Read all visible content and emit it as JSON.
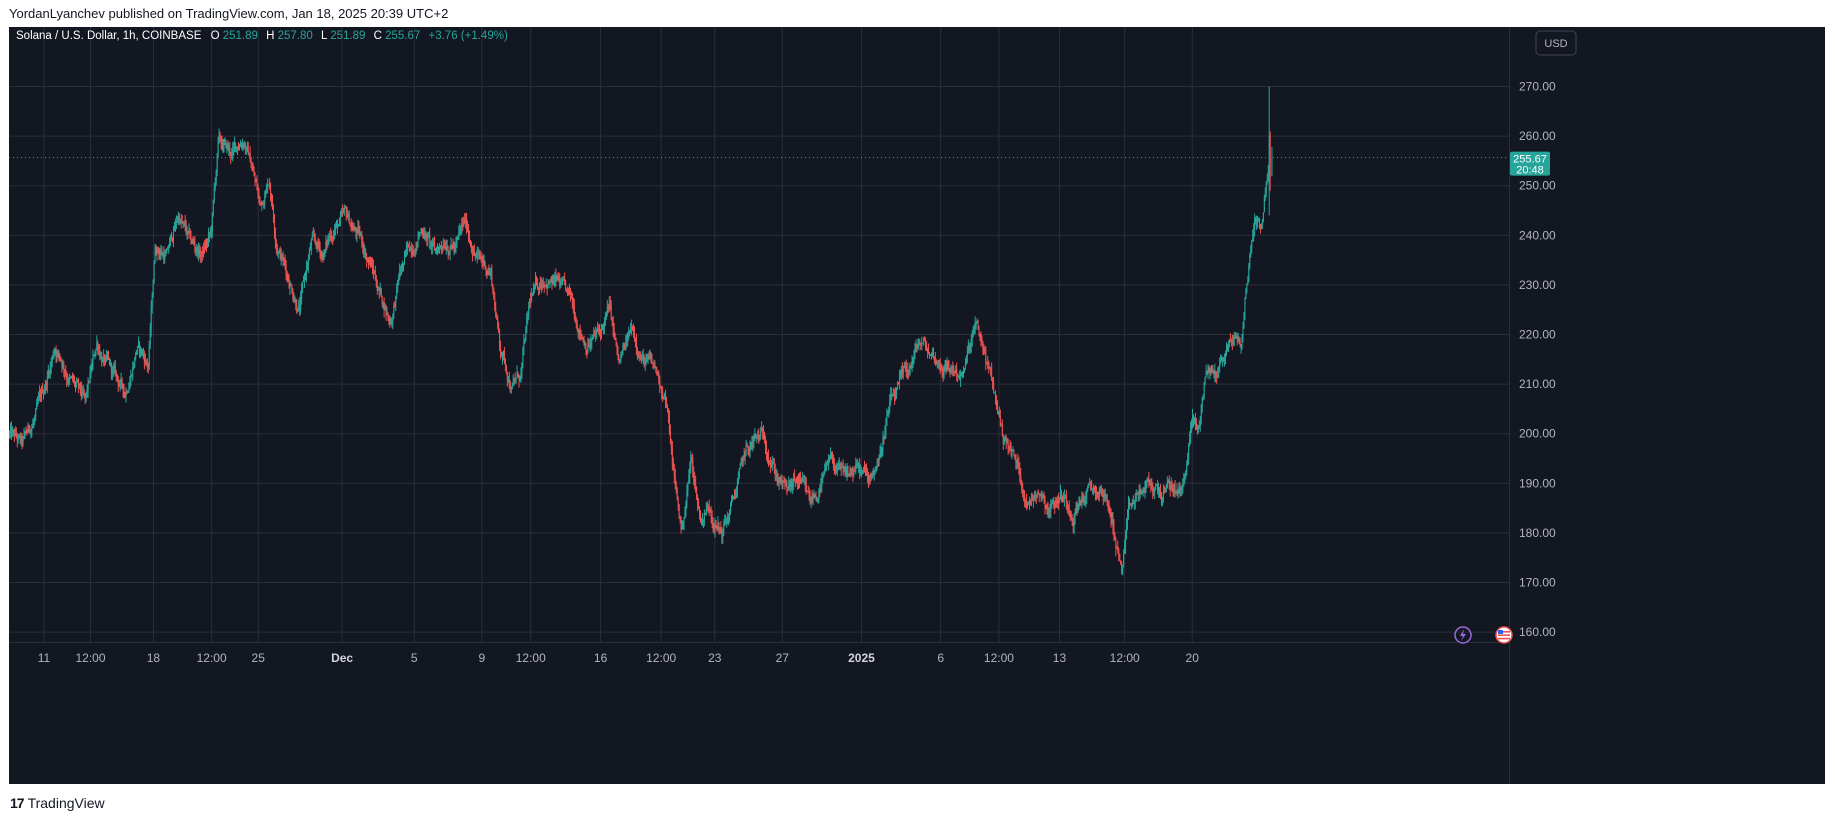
{
  "header": {
    "text": "YordanLyanchev published on TradingView.com, Jan 18, 2025 20:39 UTC+2"
  },
  "footer": {
    "brand": "TradingView",
    "logo_glyph": "17"
  },
  "colors": {
    "background": "#131722",
    "up": "#26a69a",
    "down": "#ef5350",
    "grid": "#2a2e39",
    "axis_text": "#b2b5be"
  },
  "price_badge": {
    "price": "255.67",
    "countdown": "20:48"
  },
  "currency_button": {
    "label": "USD"
  },
  "icons": [
    "lightning-icon",
    "us-flag-icon"
  ],
  "chart_data": {
    "type": "candlestick",
    "title": "Solana / U.S. Dollar, 1h, COINBASE",
    "legend": {
      "symbol": "Solana / U.S. Dollar, 1h, COINBASE",
      "o_label": "O",
      "open": "251.89",
      "h_label": "H",
      "high": "257.80",
      "l_label": "L",
      "low": "251.89",
      "c_label": "C",
      "close": "255.67",
      "change": "+3.76 (+1.49%)"
    },
    "ylim": [
      158,
      282
    ],
    "y_ticks": [
      160,
      170,
      180,
      190,
      200,
      210,
      220,
      230,
      240,
      250,
      260,
      270
    ],
    "y_tick_labels": [
      "160.00",
      "170.00",
      "180.00",
      "190.00",
      "200.00",
      "210.00",
      "220.00",
      "230.00",
      "240.00",
      "250.00",
      "260.00",
      "270.00"
    ],
    "x_range_days": [
      0,
      64.4
    ],
    "x_ticks": [
      {
        "label": "11",
        "day": 1.5,
        "bold": false
      },
      {
        "label": "12:00",
        "day": 3.5,
        "bold": false
      },
      {
        "label": "18",
        "day": 6.2,
        "bold": false
      },
      {
        "label": "12:00",
        "day": 8.7,
        "bold": false
      },
      {
        "label": "25",
        "day": 10.7,
        "bold": false
      },
      {
        "label": "Dec",
        "day": 14.3,
        "bold": true
      },
      {
        "label": "5",
        "day": 17.4,
        "bold": false
      },
      {
        "label": "9",
        "day": 20.3,
        "bold": false
      },
      {
        "label": "12:00",
        "day": 22.4,
        "bold": false
      },
      {
        "label": "16",
        "day": 25.4,
        "bold": false
      },
      {
        "label": "12:00",
        "day": 28.0,
        "bold": false
      },
      {
        "label": "23",
        "day": 30.3,
        "bold": false
      },
      {
        "label": "27",
        "day": 33.2,
        "bold": false
      },
      {
        "label": "2025",
        "day": 36.6,
        "bold": true
      },
      {
        "label": "6",
        "day": 40.0,
        "bold": false
      },
      {
        "label": "12:00",
        "day": 42.5,
        "bold": false
      },
      {
        "label": "13",
        "day": 45.1,
        "bold": false
      },
      {
        "label": "12:00",
        "day": 47.9,
        "bold": false
      },
      {
        "label": "20",
        "day": 50.8,
        "bold": false
      }
    ],
    "hours_per_candle": 1,
    "waypoints": [
      [
        0,
        200
      ],
      [
        0.6,
        197
      ],
      [
        1.4,
        206
      ],
      [
        2.0,
        218
      ],
      [
        2.5,
        213
      ],
      [
        3.3,
        205
      ],
      [
        3.8,
        218
      ],
      [
        4.4,
        212
      ],
      [
        5.0,
        208
      ],
      [
        5.5,
        218
      ],
      [
        6.0,
        214
      ],
      [
        6.3,
        238
      ],
      [
        6.8,
        236
      ],
      [
        7.3,
        244
      ],
      [
        7.8,
        238
      ],
      [
        8.3,
        236
      ],
      [
        8.7,
        240
      ],
      [
        9.0,
        258
      ],
      [
        9.6,
        256
      ],
      [
        10.1,
        260
      ],
      [
        10.5,
        253
      ],
      [
        10.8,
        246
      ],
      [
        11.2,
        252
      ],
      [
        11.5,
        240
      ],
      [
        12.0,
        232
      ],
      [
        12.5,
        226
      ],
      [
        13.0,
        238
      ],
      [
        13.5,
        236
      ],
      [
        14.0,
        242
      ],
      [
        14.5,
        243
      ],
      [
        15.0,
        240
      ],
      [
        15.5,
        235
      ],
      [
        16.0,
        228
      ],
      [
        16.4,
        223
      ],
      [
        16.8,
        232
      ],
      [
        17.3,
        238
      ],
      [
        17.8,
        242
      ],
      [
        18.3,
        236
      ],
      [
        18.8,
        240
      ],
      [
        19.2,
        238
      ],
      [
        19.6,
        242
      ],
      [
        20.2,
        235
      ],
      [
        20.7,
        233
      ],
      [
        21.1,
        218
      ],
      [
        21.6,
        210
      ],
      [
        22.0,
        212
      ],
      [
        22.4,
        226
      ],
      [
        23.0,
        232
      ],
      [
        23.6,
        230
      ],
      [
        24.1,
        226
      ],
      [
        24.8,
        219
      ],
      [
        25.4,
        220
      ],
      [
        25.8,
        225
      ],
      [
        26.2,
        213
      ],
      [
        26.8,
        221
      ],
      [
        27.3,
        215
      ],
      [
        27.8,
        212
      ],
      [
        28.2,
        208
      ],
      [
        28.6,
        190
      ],
      [
        28.9,
        180
      ],
      [
        29.3,
        195
      ],
      [
        29.7,
        183
      ],
      [
        30.1,
        186
      ],
      [
        30.6,
        180
      ],
      [
        31.1,
        186
      ],
      [
        31.6,
        195
      ],
      [
        32.0,
        198
      ],
      [
        32.5,
        199
      ],
      [
        33.0,
        192
      ],
      [
        33.4,
        188
      ],
      [
        33.9,
        190
      ],
      [
        34.4,
        185
      ],
      [
        34.9,
        190
      ],
      [
        35.4,
        194
      ],
      [
        35.9,
        190
      ],
      [
        36.4,
        193
      ],
      [
        36.9,
        190
      ],
      [
        37.4,
        196
      ],
      [
        37.8,
        205
      ],
      [
        38.2,
        208
      ],
      [
        38.7,
        213
      ],
      [
        39.1,
        218
      ],
      [
        39.6,
        216
      ],
      [
        40.1,
        214
      ],
      [
        40.6,
        213
      ],
      [
        41.0,
        212
      ],
      [
        41.5,
        221
      ],
      [
        41.9,
        216
      ],
      [
        42.3,
        208
      ],
      [
        42.7,
        200
      ],
      [
        43.0,
        197
      ],
      [
        43.4,
        192
      ],
      [
        43.8,
        186
      ],
      [
        44.2,
        190
      ],
      [
        44.7,
        186
      ],
      [
        45.2,
        188
      ],
      [
        45.7,
        185
      ],
      [
        46.2,
        188
      ],
      [
        46.6,
        188
      ],
      [
        47.0,
        188
      ],
      [
        47.4,
        182
      ],
      [
        47.8,
        172
      ],
      [
        48.1,
        183
      ],
      [
        48.6,
        188
      ],
      [
        49.1,
        189
      ],
      [
        49.6,
        188
      ],
      [
        50.0,
        189
      ],
      [
        50.4,
        188
      ],
      [
        50.8,
        203
      ],
      [
        51.1,
        200
      ],
      [
        51.4,
        213
      ],
      [
        51.8,
        212
      ],
      [
        52.2,
        216
      ],
      [
        52.6,
        220
      ],
      [
        52.9,
        217
      ],
      [
        53.2,
        232
      ],
      [
        53.5,
        244
      ],
      [
        53.8,
        243
      ],
      [
        54.0,
        252
      ],
      [
        54.2,
        256
      ]
    ],
    "last_candle": {
      "open": 251.89,
      "high": 257.8,
      "low": 251.89,
      "close": 255.67
    }
  }
}
